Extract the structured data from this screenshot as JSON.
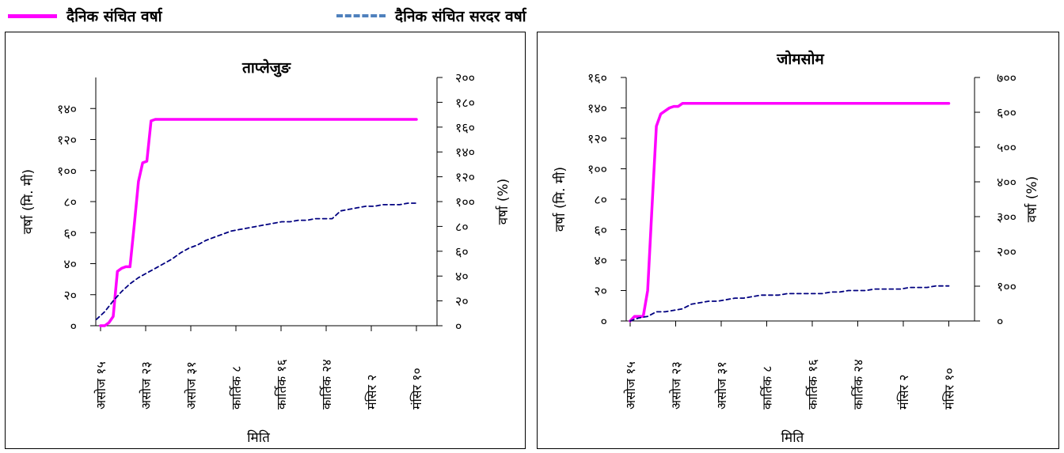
{
  "legend": [
    {
      "label": "दैनिक संचित वर्षा",
      "style": "solid",
      "color": "#ff00ff"
    },
    {
      "label": "दैनिक संचित सरदर वर्षा",
      "style": "dashed",
      "color": "#4f81bd"
    }
  ],
  "chart_data": [
    {
      "type": "line",
      "title": "ताप्लेजुङ",
      "xlabel": "मिति",
      "ylabel": "वर्षा (मि. मी)",
      "y2label": "वर्षा (%)",
      "categories": [
        "असोज १५",
        "असोज २३",
        "असोज ३१",
        "कार्तिक ८",
        "कार्तिक १६",
        "कार्तिक २४",
        "मंसिर २",
        "मंसिर १०"
      ],
      "x_range": [
        0,
        75
      ],
      "ylim": [
        0,
        160
      ],
      "y_ticks": [
        "०",
        "२०",
        "४०",
        "६०",
        "८०",
        "१००",
        "१२०",
        "१४०"
      ],
      "y_tick_values": [
        0,
        20,
        40,
        60,
        80,
        100,
        120,
        140
      ],
      "y2lim": [
        0,
        200
      ],
      "y2_ticks": [
        "०",
        "२०",
        "४०",
        "६०",
        "८०",
        "१००",
        "१२०",
        "१४०",
        "१६०",
        "१८०",
        "२००"
      ],
      "y2_tick_values": [
        0,
        20,
        40,
        60,
        80,
        100,
        120,
        140,
        160,
        180,
        200
      ],
      "grid": false,
      "series": [
        {
          "name": "दैनिक संचित वर्षा",
          "axis": "left",
          "color": "#ff00ff",
          "dash": "solid",
          "x": [
            0,
            1,
            2,
            3,
            4,
            5,
            6,
            7,
            8,
            9,
            10,
            11,
            12,
            13,
            14,
            15,
            16,
            17,
            18,
            19,
            20,
            75
          ],
          "y": [
            0,
            0,
            2,
            6,
            35,
            37,
            38,
            38,
            65,
            93,
            105,
            106,
            132,
            133,
            133,
            133,
            133,
            133,
            133,
            133,
            133,
            133
          ]
        },
        {
          "name": "दैनिक संचित सरदर वर्षा",
          "axis": "left",
          "color": "#000080",
          "dash": "dashed",
          "x": [
            -1,
            1,
            3,
            5,
            7,
            9,
            11,
            13,
            15,
            17,
            19,
            21,
            23,
            25,
            27,
            29,
            31,
            33,
            35,
            37,
            39,
            41,
            43,
            45,
            47,
            49,
            51,
            53,
            55,
            57,
            59,
            61,
            63,
            65,
            67,
            69,
            71,
            73,
            75
          ],
          "y": [
            4,
            9,
            16,
            22,
            27,
            31,
            34,
            37,
            40,
            43,
            47,
            50,
            52,
            55,
            57,
            59,
            61,
            62,
            63,
            64,
            65,
            66,
            67,
            67,
            68,
            68,
            69,
            69,
            69,
            74,
            75,
            76,
            77,
            77,
            78,
            78,
            78,
            79,
            79
          ]
        }
      ]
    },
    {
      "type": "line",
      "title": "जोमसोम",
      "xlabel": "मिति",
      "ylabel": "वर्षा (मि. मी)",
      "y2label": "वर्षा (%)",
      "categories": [
        "असोज १५",
        "असोज २३",
        "असोज ३१",
        "कार्तिक ८",
        "कार्तिक १६",
        "कार्तिक २४",
        "मंसिर २",
        "मंसिर १०"
      ],
      "x_range": [
        0,
        73
      ],
      "ylim": [
        0,
        160
      ],
      "y_ticks": [
        "०",
        "२०",
        "४०",
        "६०",
        "८०",
        "१००",
        "१२०",
        "१४०",
        "१६०"
      ],
      "y_tick_values": [
        0,
        20,
        40,
        60,
        80,
        100,
        120,
        140,
        160
      ],
      "y2lim": [
        0,
        700
      ],
      "y2_ticks": [
        "०",
        "१००",
        "२००",
        "३००",
        "४००",
        "५००",
        "६००",
        "७००"
      ],
      "y2_tick_values": [
        0,
        100,
        200,
        300,
        400,
        500,
        600,
        700
      ],
      "grid": false,
      "series": [
        {
          "name": "दैनिक संचित वर्षा",
          "axis": "left",
          "color": "#ff00ff",
          "dash": "solid",
          "x": [
            0,
            1,
            2,
            3,
            4,
            5,
            6,
            7,
            8,
            9,
            10,
            11,
            12,
            13,
            14,
            15,
            16,
            73
          ],
          "y": [
            0,
            3,
            3,
            3,
            20,
            75,
            128,
            136,
            138,
            140,
            141,
            141,
            143,
            143,
            143,
            143,
            143,
            143
          ]
        },
        {
          "name": "दैनिक संचित सरदर वर्षा",
          "axis": "left",
          "color": "#000080",
          "dash": "dashed",
          "x": [
            0,
            2,
            4,
            6,
            8,
            10,
            12,
            14,
            16,
            18,
            20,
            22,
            24,
            26,
            28,
            30,
            32,
            34,
            36,
            38,
            40,
            42,
            44,
            46,
            48,
            50,
            52,
            54,
            56,
            58,
            60,
            62,
            64,
            66,
            68,
            70,
            72,
            73
          ],
          "y": [
            0,
            2,
            3,
            6,
            6,
            7,
            8,
            11,
            12,
            13,
            13,
            14,
            15,
            15,
            16,
            17,
            17,
            17,
            18,
            18,
            18,
            18,
            18,
            19,
            19,
            20,
            20,
            20,
            21,
            21,
            21,
            21,
            22,
            22,
            22,
            23,
            23,
            23
          ]
        }
      ]
    }
  ]
}
